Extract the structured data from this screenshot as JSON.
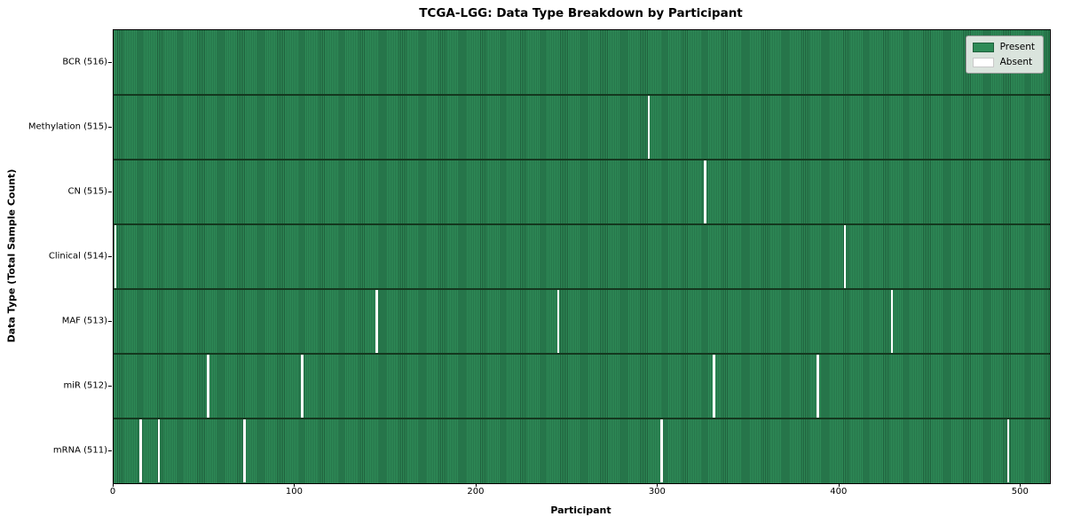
{
  "colors": {
    "present": "#2e8b57",
    "present_edge": "#1f5f3c",
    "row_divider": "#14381f",
    "absent": "#ffffff",
    "legend_bg": "rgba(233,237,233,0.92)",
    "spine": "#000000"
  },
  "chart_data": {
    "type": "heatmap",
    "title": "TCGA-LGG: Data Type Breakdown by Participant",
    "xlabel": "Participant",
    "ylabel": "Data Type (Total Sample Count)",
    "x_ticks": [
      0,
      100,
      200,
      300,
      400,
      500
    ],
    "xlim": [
      0,
      516
    ],
    "total_participants": 516,
    "grid": false,
    "legend_position": "upper right",
    "legend": [
      {
        "label": "Present",
        "color": "#2e8b57"
      },
      {
        "label": "Absent",
        "color": "#ffffff"
      }
    ],
    "rows": [
      {
        "label": "BCR (516)",
        "data_type": "BCR",
        "present_count": 516,
        "absent_participants": []
      },
      {
        "label": "Methylation (515)",
        "data_type": "Methylation",
        "present_count": 515,
        "absent_participants": [
          295
        ]
      },
      {
        "label": "CN (515)",
        "data_type": "CN",
        "present_count": 515,
        "absent_participants": [
          326
        ]
      },
      {
        "label": "Clinical (514)",
        "data_type": "Clinical",
        "present_count": 514,
        "absent_participants": [
          1,
          403
        ]
      },
      {
        "label": "MAF (513)",
        "data_type": "MAF",
        "present_count": 513,
        "absent_participants": [
          145,
          245,
          429
        ]
      },
      {
        "label": "miR (512)",
        "data_type": "miR",
        "present_count": 512,
        "absent_participants": [
          52,
          104,
          331,
          388
        ]
      },
      {
        "label": "mRNA (511)",
        "data_type": "mRNA",
        "present_count": 511,
        "absent_participants": [
          15,
          25,
          72,
          302,
          493
        ]
      }
    ]
  }
}
